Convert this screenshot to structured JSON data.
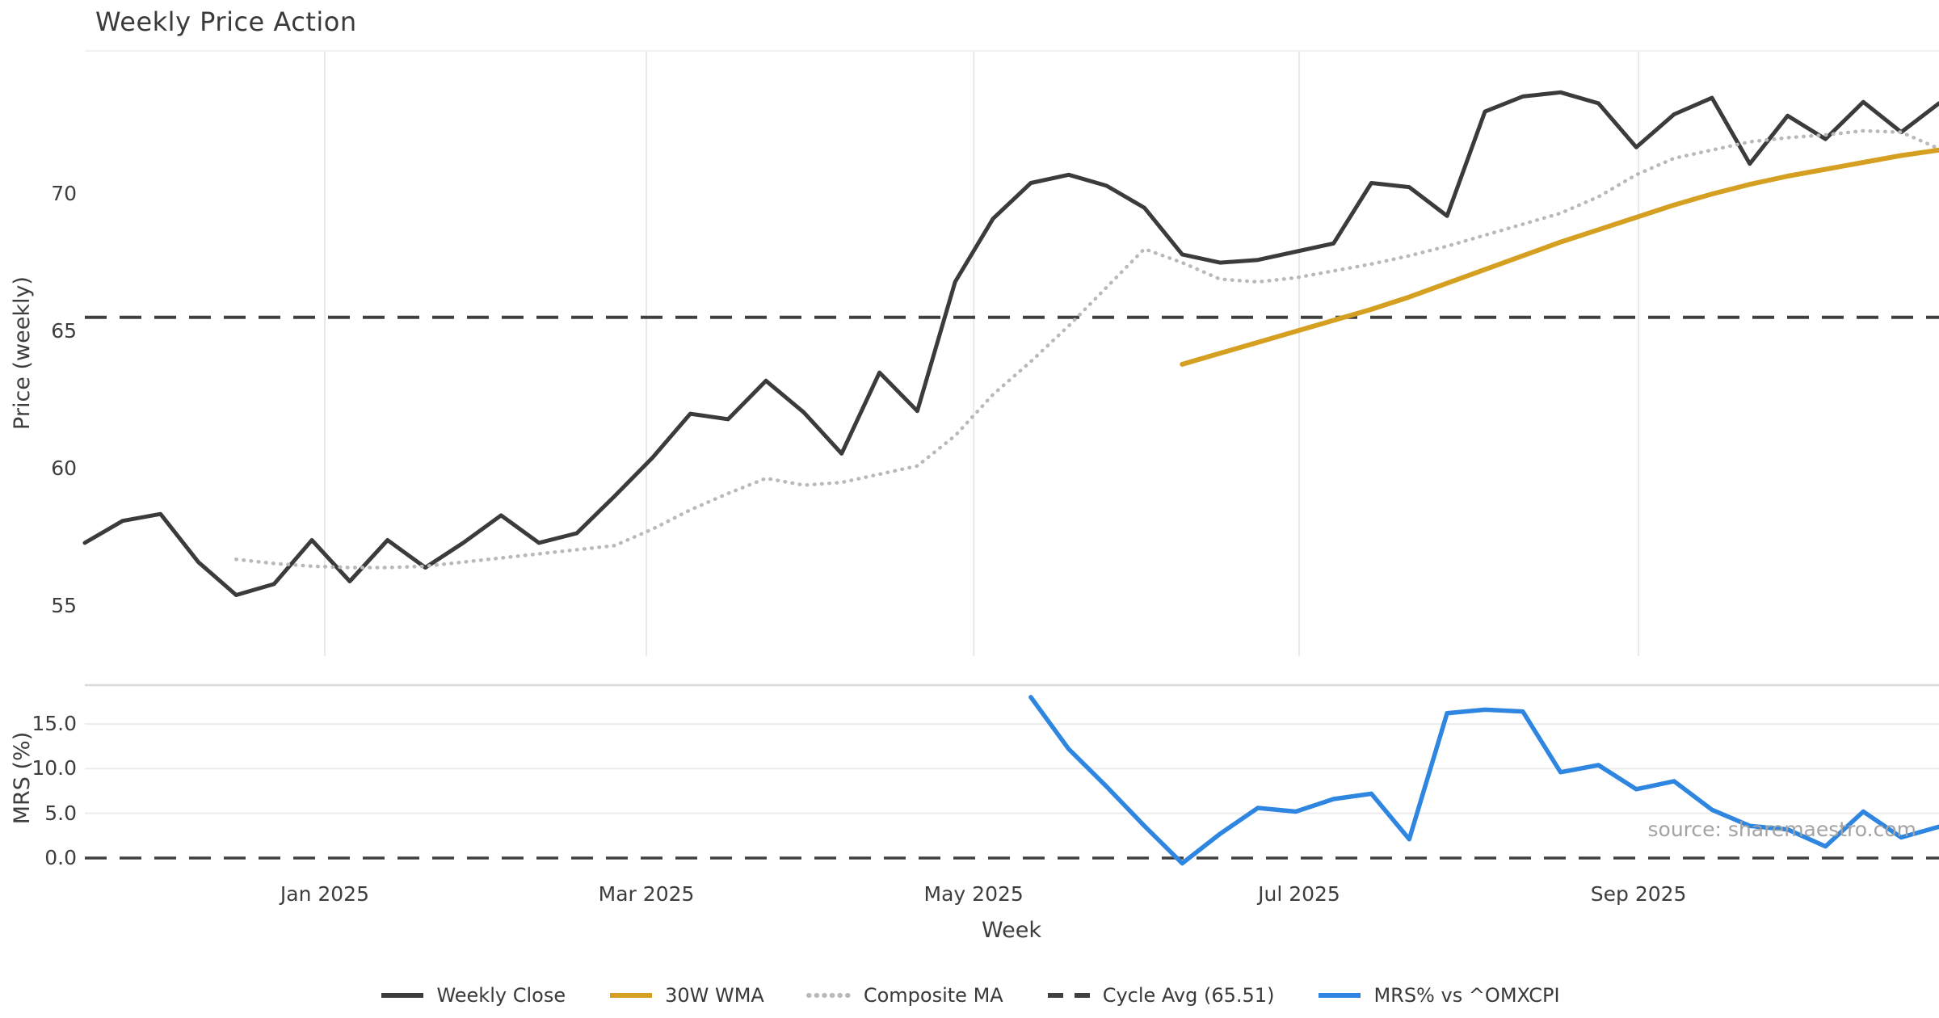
{
  "title": "Weekly Price Action",
  "source_note": "source: sharemaestro.com",
  "axes": {
    "x_label": "Week",
    "price_y_label": "Price (weekly)",
    "mrs_y_label": "MRS (%)"
  },
  "legend": [
    {
      "label": "Weekly Close",
      "color": "#3B3B3B",
      "style": "solid"
    },
    {
      "label": "30W WMA",
      "color": "#D5A021",
      "style": "solid"
    },
    {
      "label": "Composite MA",
      "color": "#B9B9B9",
      "style": "dotted"
    },
    {
      "label": "Cycle Avg (65.51)",
      "color": "#3F3F3F",
      "style": "dashed"
    },
    {
      "label": "MRS% vs ^OMXCPI",
      "color": "#2E86E0",
      "style": "solid"
    }
  ],
  "colors": {
    "weekly_close": "#3B3B3B",
    "wma_30w": "#D5A021",
    "composite_ma": "#B9B9B9",
    "cycle_avg": "#3F3F3F",
    "mrs": "#2E86E0",
    "grid_vertical": "#E9E9E9",
    "grid_horizontal": "#ECECEC",
    "panel_border_top": "#F1F1F1",
    "panel_border_mid": "#D9D9D9"
  },
  "chart_data": {
    "type": "line",
    "title": "Weekly Price Action",
    "xlabel": "Week",
    "x_unit": "week_index",
    "x_range": [
      0,
      49
    ],
    "x_ticks": [
      {
        "label": "Jan 2025",
        "week": 6.34
      },
      {
        "label": "Mar 2025",
        "week": 14.84
      },
      {
        "label": "May 2025",
        "week": 23.49
      },
      {
        "label": "Jul 2025",
        "week": 32.09
      },
      {
        "label": "Sep 2025",
        "week": 41.06
      }
    ],
    "panels": [
      {
        "name": "price",
        "ylabel": "Price (weekly)",
        "ylim": [
          53.18,
          75.21
        ],
        "grid": "vertical-months",
        "y_ticks": [
          {
            "label": "55",
            "value": 55
          },
          {
            "label": "60",
            "value": 60
          },
          {
            "label": "65",
            "value": 65
          },
          {
            "label": "70",
            "value": 70
          }
        ],
        "hlines": [
          {
            "name": "Cycle Avg",
            "value": 65.51,
            "style": "dashed"
          }
        ],
        "series": [
          {
            "name": "Weekly Close",
            "style": "solid",
            "width": 5,
            "color": "#3B3B3B",
            "start_week": 0,
            "values": [
              57.3,
              58.1,
              58.35,
              56.6,
              55.4,
              55.8,
              57.4,
              55.9,
              57.4,
              56.4,
              57.3,
              58.3,
              57.3,
              57.65,
              59.0,
              60.4,
              62.0,
              61.8,
              63.2,
              62.05,
              60.55,
              63.5,
              62.1,
              66.8,
              69.1,
              70.4,
              70.7,
              70.3,
              69.5,
              67.8,
              67.5,
              67.6,
              67.9,
              68.2,
              70.4,
              70.25,
              69.2,
              73.0,
              73.55,
              73.7,
              73.3,
              71.7,
              72.9,
              73.5,
              71.1,
              72.85,
              72.0,
              73.35,
              72.25,
              73.3
            ]
          },
          {
            "name": "Composite MA",
            "style": "dotted",
            "width": 4.5,
            "color": "#B9B9B9",
            "start_week": 4,
            "values": [
              56.7,
              56.55,
              56.45,
              56.4,
              56.4,
              56.45,
              56.6,
              56.75,
              56.9,
              57.05,
              57.2,
              57.8,
              58.5,
              59.1,
              59.65,
              59.4,
              59.5,
              59.8,
              60.1,
              61.2,
              62.7,
              63.9,
              65.2,
              66.6,
              68.0,
              67.5,
              66.9,
              66.8,
              66.95,
              67.2,
              67.45,
              67.75,
              68.1,
              68.5,
              68.9,
              69.3,
              69.9,
              70.7,
              71.3,
              71.6,
              71.9,
              72.05,
              72.15,
              72.3,
              72.25,
              71.65
            ]
          },
          {
            "name": "30W WMA",
            "style": "solid",
            "width": 6,
            "color": "#D5A021",
            "start_week": 29,
            "values": [
              63.8,
              64.2,
              64.6,
              65.0,
              65.4,
              65.8,
              66.25,
              66.75,
              67.25,
              67.75,
              68.25,
              68.7,
              69.15,
              69.6,
              70.0,
              70.35,
              70.65,
              70.9,
              71.15,
              71.4,
              71.6
            ]
          }
        ]
      },
      {
        "name": "mrs",
        "ylabel": "MRS (%)",
        "ylim": [
          -1.45,
          19.35
        ],
        "grid": "horizontal",
        "y_ticks": [
          {
            "label": "0.0",
            "value": 0
          },
          {
            "label": "5.0",
            "value": 5
          },
          {
            "label": "10.0",
            "value": 10
          },
          {
            "label": "15.0",
            "value": 15
          }
        ],
        "hlines": [
          {
            "name": "zero",
            "value": 0,
            "style": "dashed"
          }
        ],
        "series": [
          {
            "name": "MRS% vs ^OMXCPI",
            "style": "solid",
            "width": 5.5,
            "color": "#2E86E0",
            "start_week": 25,
            "values": [
              18.0,
              12.2,
              8.0,
              3.6,
              -0.6,
              2.7,
              5.6,
              5.2,
              6.6,
              7.2,
              2.1,
              16.2,
              16.6,
              16.4,
              9.6,
              10.4,
              7.7,
              8.6,
              5.4,
              3.6,
              3.2,
              1.3,
              5.2,
              2.3,
              3.5
            ]
          }
        ]
      }
    ]
  }
}
